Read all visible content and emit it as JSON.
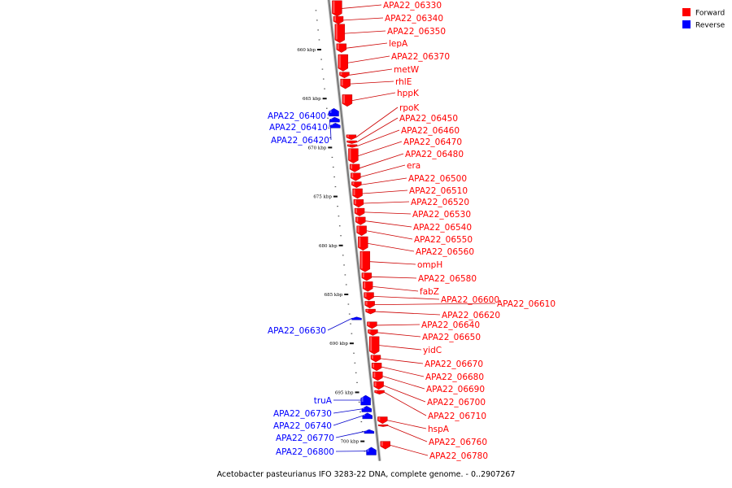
{
  "caption": "Acetobacter pasteurianus IFO 3283-22 DNA, complete genome. - 0..2907267",
  "colors": {
    "forward": "#ff0000",
    "reverse": "#0000ff",
    "backbone": "#777777",
    "leader_fwd": "#cc0000",
    "leader_rev": "#0000cc"
  },
  "legend": [
    {
      "label": "Forward",
      "color": "#ff0000"
    },
    {
      "label": "Reverse",
      "color": "#0000ff"
    }
  ],
  "ticks": [
    {
      "kbp": 660,
      "label": "660 kbp"
    },
    {
      "kbp": 665,
      "label": "665 kbp"
    },
    {
      "kbp": 670,
      "label": "670 kbp"
    },
    {
      "kbp": 675,
      "label": "675 kbp"
    },
    {
      "kbp": 680,
      "label": "680 kbp"
    },
    {
      "kbp": 685,
      "label": "685 kbp"
    },
    {
      "kbp": 690,
      "label": "690 kbp"
    },
    {
      "kbp": 695,
      "label": "695 kbp"
    },
    {
      "kbp": 700,
      "label": "700 kbp"
    }
  ],
  "forward_genes": [
    {
      "label": "APA22_06330",
      "start": 655.0,
      "end": 656.6
    },
    {
      "label": "APA22_06340",
      "start": 656.6,
      "end": 657.4
    },
    {
      "label": "APA22_06350",
      "start": 657.4,
      "end": 659.3
    },
    {
      "label": "lepA",
      "start": 659.4,
      "end": 660.3
    },
    {
      "label": "APA22_06370",
      "start": 660.5,
      "end": 662.2
    },
    {
      "label": "metW",
      "start": 662.3,
      "end": 662.9
    },
    {
      "label": "rhlE",
      "start": 663.0,
      "end": 664.0
    },
    {
      "label": "hppK",
      "start": 664.6,
      "end": 665.8
    },
    {
      "label": "rpoK",
      "start": 668.7,
      "end": 669.2
    },
    {
      "label": "APA22_06450",
      "start": 669.3,
      "end": 669.6
    },
    {
      "label": "APA22_06460",
      "start": 669.7,
      "end": 670.0
    },
    {
      "label": "APA22_06470",
      "start": 670.1,
      "end": 671.6
    },
    {
      "label": "APA22_06480",
      "start": 671.7,
      "end": 672.5
    },
    {
      "label": "era",
      "start": 672.6,
      "end": 673.4
    },
    {
      "label": "APA22_06500",
      "start": 673.5,
      "end": 674.1
    },
    {
      "label": "APA22_06510",
      "start": 674.2,
      "end": 675.2
    },
    {
      "label": "APA22_06520",
      "start": 675.3,
      "end": 676.1
    },
    {
      "label": "APA22_06530",
      "start": 676.2,
      "end": 677.0
    },
    {
      "label": "APA22_06540",
      "start": 677.1,
      "end": 677.9
    },
    {
      "label": "APA22_06550",
      "start": 678.0,
      "end": 679.0
    },
    {
      "label": "APA22_06560",
      "start": 679.1,
      "end": 680.5
    },
    {
      "label": "ompH",
      "start": 680.6,
      "end": 682.7
    },
    {
      "label": "APA22_06580",
      "start": 682.8,
      "end": 683.6
    },
    {
      "label": "fabZ",
      "start": 683.7,
      "end": 684.7
    },
    {
      "label": "APA22_06600",
      "start": 684.8,
      "end": 685.6
    },
    {
      "label": "APA22_06610",
      "start": 685.7,
      "end": 686.4
    },
    {
      "label": "APA22_06620",
      "start": 686.5,
      "end": 687.0
    },
    {
      "label": "APA22_06640",
      "start": 687.8,
      "end": 688.5
    },
    {
      "label": "APA22_06650",
      "start": 688.6,
      "end": 689.2
    },
    {
      "label": "yidC",
      "start": 689.3,
      "end": 691.1
    },
    {
      "label": "APA22_06670",
      "start": 691.2,
      "end": 691.9
    },
    {
      "label": "APA22_06680",
      "start": 692.0,
      "end": 692.8
    },
    {
      "label": "APA22_06690",
      "start": 692.9,
      "end": 693.8
    },
    {
      "label": "APA22_06700",
      "start": 693.9,
      "end": 694.7
    },
    {
      "label": "APA22_06710",
      "start": 694.8,
      "end": 695.2
    },
    {
      "label": "hspA",
      "start": 697.5,
      "end": 698.2
    },
    {
      "label": "APA22_06760",
      "start": 698.3,
      "end": 698.5
    },
    {
      "label": "APA22_06780",
      "start": 700.0,
      "end": 700.8
    }
  ],
  "reverse_genes": [
    {
      "label": "APA22_06400",
      "start": 666.0,
      "end": 666.8
    },
    {
      "label": "APA22_06410",
      "start": 666.9,
      "end": 667.4
    },
    {
      "label": "APA22_06420",
      "start": 667.5,
      "end": 668.0
    },
    {
      "label": "APA22_06630",
      "start": 687.3,
      "end": 687.6
    },
    {
      "label": "truA",
      "start": 695.3,
      "end": 696.3
    },
    {
      "label": "APA22_06730",
      "start": 696.4,
      "end": 697.0
    },
    {
      "label": "APA22_06740",
      "start": 697.1,
      "end": 697.7
    },
    {
      "label": "APA22_06770",
      "start": 698.8,
      "end": 699.2
    },
    {
      "label": "APA22_06800",
      "start": 700.6,
      "end": 701.4
    }
  ]
}
